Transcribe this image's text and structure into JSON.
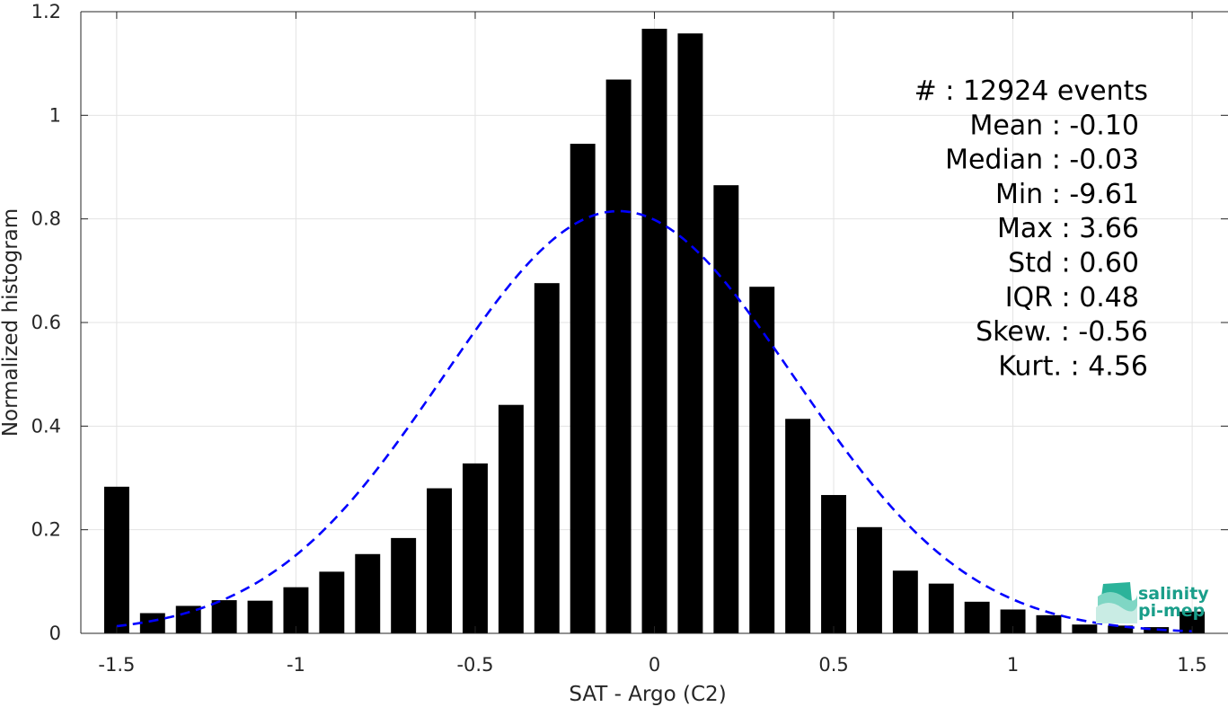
{
  "chart_data": {
    "type": "bar",
    "xlabel": "SAT - Argo (C2)",
    "ylabel": "Normalized histogram",
    "xlim": [
      -1.6,
      1.6
    ],
    "ylim": [
      0,
      1.2
    ],
    "grid": true,
    "x_ticks": [
      -1.5,
      -1,
      -0.5,
      0,
      0.5,
      1,
      1.5
    ],
    "x_tick_labels": [
      "-1.5",
      "-1",
      "-0.5",
      "0",
      "0.5",
      "1",
      "1.5"
    ],
    "y_ticks": [
      0,
      0.2,
      0.4,
      0.6,
      0.8,
      1,
      1.2
    ],
    "y_tick_labels": [
      "0",
      "0.2",
      "0.4",
      "0.6",
      "0.8",
      "1",
      "1.2"
    ],
    "bar_width": 0.07,
    "bars": [
      {
        "x": -1.5,
        "y": 0.283
      },
      {
        "x": -1.4,
        "y": 0.039
      },
      {
        "x": -1.3,
        "y": 0.053
      },
      {
        "x": -1.2,
        "y": 0.064
      },
      {
        "x": -1.1,
        "y": 0.063
      },
      {
        "x": -1.0,
        "y": 0.089
      },
      {
        "x": -0.9,
        "y": 0.119
      },
      {
        "x": -0.8,
        "y": 0.153
      },
      {
        "x": -0.7,
        "y": 0.184
      },
      {
        "x": -0.6,
        "y": 0.28
      },
      {
        "x": -0.5,
        "y": 0.328
      },
      {
        "x": -0.4,
        "y": 0.441
      },
      {
        "x": -0.3,
        "y": 0.676
      },
      {
        "x": -0.2,
        "y": 0.945
      },
      {
        "x": -0.1,
        "y": 1.069
      },
      {
        "x": 0.0,
        "y": 1.167
      },
      {
        "x": 0.1,
        "y": 1.158
      },
      {
        "x": 0.2,
        "y": 0.865
      },
      {
        "x": 0.3,
        "y": 0.669
      },
      {
        "x": 0.4,
        "y": 0.414
      },
      {
        "x": 0.5,
        "y": 0.267
      },
      {
        "x": 0.6,
        "y": 0.205
      },
      {
        "x": 0.7,
        "y": 0.121
      },
      {
        "x": 0.8,
        "y": 0.096
      },
      {
        "x": 0.9,
        "y": 0.061
      },
      {
        "x": 1.0,
        "y": 0.046
      },
      {
        "x": 1.1,
        "y": 0.035
      },
      {
        "x": 1.2,
        "y": 0.017
      },
      {
        "x": 1.3,
        "y": 0.015
      },
      {
        "x": 1.4,
        "y": 0.012
      },
      {
        "x": 1.5,
        "y": 0.042
      }
    ],
    "fit_curve": {
      "style": "dashed",
      "color": "#0000ff",
      "mean": -0.1,
      "std": 0.49,
      "peak": 0.815,
      "x_range": [
        -1.5,
        1.5
      ]
    },
    "bar_color": "#000000",
    "stats_lines": [
      "#  : 12924 events",
      "Mean : -0.10",
      "Median : -0.03",
      "Min : -9.61",
      "Max : 3.66",
      "Std : 0.60",
      "IQR : 0.48",
      "Skew. : -0.56",
      "Kurt. : 4.56"
    ]
  },
  "logo": {
    "line1": "salinity",
    "line2": "pi-mep",
    "color": "#1a9e8a"
  }
}
